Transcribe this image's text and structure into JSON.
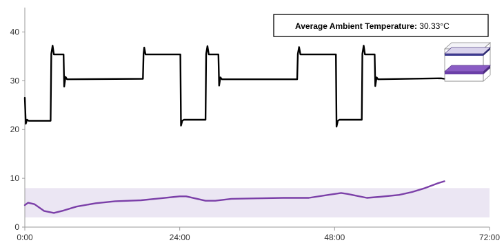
{
  "chart_data": {
    "type": "line",
    "title": "",
    "xlabel": "",
    "ylabel": "",
    "x_ticks": [
      "0:00",
      "24:00",
      "48:00",
      "72:00"
    ],
    "x_tick_hours": [
      0,
      24,
      48,
      72
    ],
    "xlim_hours": [
      0,
      72
    ],
    "ylim": [
      0,
      45
    ],
    "y_ticks": [
      0,
      10,
      20,
      30,
      40
    ],
    "grid": false,
    "annotation": {
      "label": "Average Ambient Temperature:",
      "value": "30.33°C"
    },
    "shaded_band": {
      "y_from": 2,
      "y_to": 8,
      "color": "#ebe6f3"
    },
    "series": [
      {
        "color": "#000000",
        "points": [
          [
            0.0,
            26.5
          ],
          [
            0.15,
            21.2
          ],
          [
            0.35,
            22.0
          ],
          [
            0.6,
            21.8
          ],
          [
            4.0,
            21.8
          ],
          [
            4.1,
            35.5
          ],
          [
            4.3,
            37.2
          ],
          [
            4.5,
            35.4
          ],
          [
            6.0,
            35.4
          ],
          [
            6.1,
            28.8
          ],
          [
            6.3,
            30.8
          ],
          [
            6.55,
            30.3
          ],
          [
            18.3,
            30.4
          ],
          [
            18.4,
            35.5
          ],
          [
            18.5,
            36.8
          ],
          [
            18.7,
            35.4
          ],
          [
            24.1,
            35.4
          ],
          [
            24.2,
            20.8
          ],
          [
            24.4,
            21.8
          ],
          [
            24.65,
            22.0
          ],
          [
            28.0,
            22.0
          ],
          [
            28.1,
            35.5
          ],
          [
            28.3,
            37.1
          ],
          [
            28.5,
            35.4
          ],
          [
            30.0,
            35.4
          ],
          [
            30.1,
            29.0
          ],
          [
            30.3,
            30.7
          ],
          [
            30.55,
            30.3
          ],
          [
            42.2,
            30.3
          ],
          [
            42.3,
            35.5
          ],
          [
            42.5,
            36.9
          ],
          [
            42.7,
            35.4
          ],
          [
            48.2,
            35.4
          ],
          [
            48.3,
            20.6
          ],
          [
            48.5,
            21.8
          ],
          [
            48.75,
            22.0
          ],
          [
            52.2,
            22.0
          ],
          [
            52.3,
            35.5
          ],
          [
            52.5,
            37.2
          ],
          [
            52.7,
            35.4
          ],
          [
            54.2,
            35.4
          ],
          [
            54.3,
            28.9
          ],
          [
            54.5,
            30.7
          ],
          [
            54.75,
            30.3
          ],
          [
            64.5,
            30.5
          ],
          [
            65.0,
            30.4
          ]
        ]
      },
      {
        "color": "#7b3fa8",
        "points": [
          [
            0,
            4.5
          ],
          [
            0.5,
            5.0
          ],
          [
            1.5,
            4.7
          ],
          [
            3,
            3.3
          ],
          [
            4.5,
            2.9
          ],
          [
            6,
            3.4
          ],
          [
            8,
            4.2
          ],
          [
            11,
            4.9
          ],
          [
            14,
            5.3
          ],
          [
            18,
            5.5
          ],
          [
            21,
            5.9
          ],
          [
            24,
            6.3
          ],
          [
            25,
            6.3
          ],
          [
            28,
            5.4
          ],
          [
            29.5,
            5.4
          ],
          [
            32,
            5.8
          ],
          [
            36,
            5.9
          ],
          [
            40,
            6.0
          ],
          [
            44,
            6.0
          ],
          [
            47,
            6.6
          ],
          [
            49,
            7.0
          ],
          [
            50,
            6.8
          ],
          [
            53,
            6.0
          ],
          [
            55,
            6.2
          ],
          [
            58,
            6.6
          ],
          [
            60,
            7.2
          ],
          [
            62,
            8.0
          ],
          [
            64,
            9.0
          ],
          [
            65,
            9.4
          ]
        ]
      }
    ]
  }
}
